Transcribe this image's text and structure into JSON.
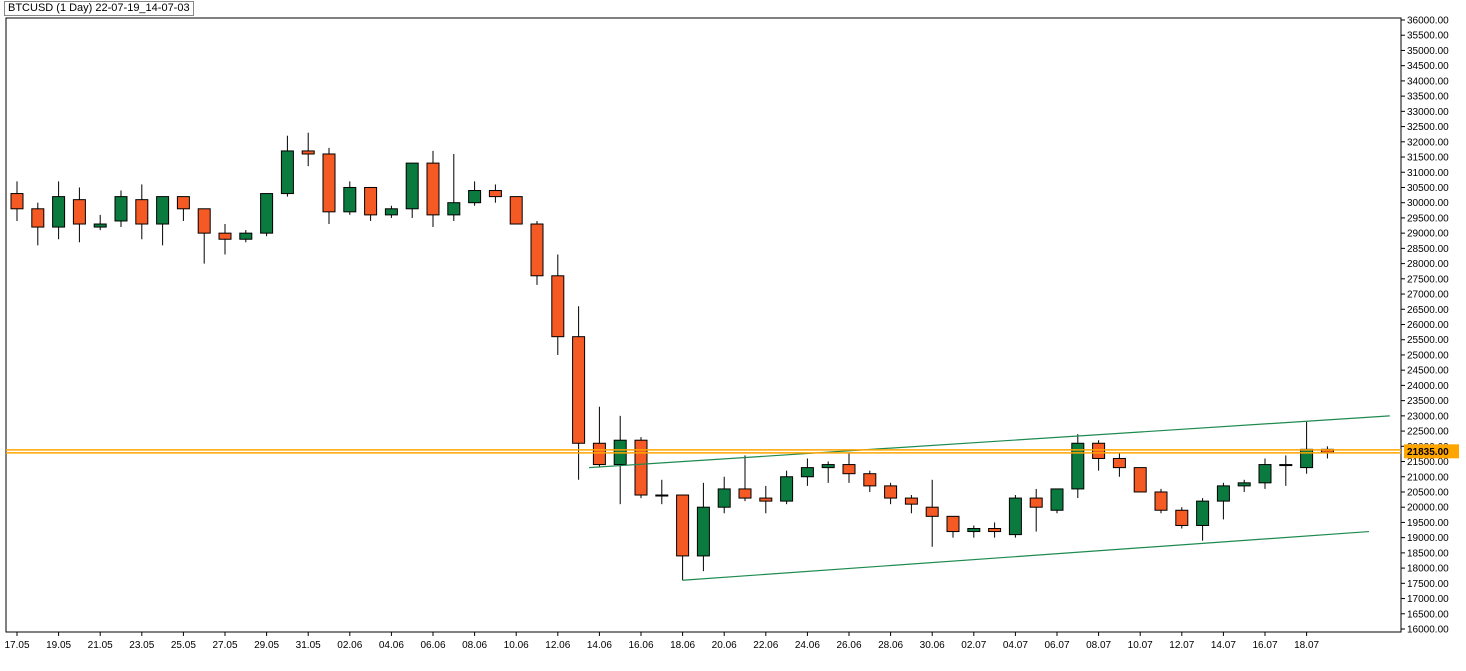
{
  "chart_data": {
    "type": "candlestick",
    "title": "BTCUSD (1 Day) 22-07-19_14-07-03",
    "ylim": [
      16000,
      36000
    ],
    "y_ticks": [
      16000,
      16500,
      17000,
      17500,
      18000,
      18500,
      19000,
      19500,
      20000,
      20500,
      21000,
      21500,
      22000,
      22500,
      23000,
      23500,
      24000,
      24500,
      25000,
      25500,
      26000,
      26500,
      27000,
      27500,
      28000,
      28500,
      29000,
      29500,
      30000,
      30500,
      31000,
      31500,
      32000,
      32500,
      33000,
      33500,
      34000,
      34500,
      35000,
      35500,
      36000
    ],
    "x_labels": [
      {
        "index": 0,
        "label": "17.05"
      },
      {
        "index": 2,
        "label": "19.05"
      },
      {
        "index": 4,
        "label": "21.05"
      },
      {
        "index": 6,
        "label": "23.05"
      },
      {
        "index": 8,
        "label": "25.05"
      },
      {
        "index": 10,
        "label": "27.05"
      },
      {
        "index": 12,
        "label": "29.05"
      },
      {
        "index": 14,
        "label": "31.05"
      },
      {
        "index": 16,
        "label": "02.06"
      },
      {
        "index": 18,
        "label": "04.06"
      },
      {
        "index": 20,
        "label": "06.06"
      },
      {
        "index": 22,
        "label": "08.06"
      },
      {
        "index": 24,
        "label": "10.06"
      },
      {
        "index": 26,
        "label": "12.06"
      },
      {
        "index": 28,
        "label": "14.06"
      },
      {
        "index": 30,
        "label": "16.06"
      },
      {
        "index": 32,
        "label": "18.06"
      },
      {
        "index": 34,
        "label": "20.06"
      },
      {
        "index": 36,
        "label": "22.06"
      },
      {
        "index": 38,
        "label": "24.06"
      },
      {
        "index": 40,
        "label": "26.06"
      },
      {
        "index": 42,
        "label": "28.06"
      },
      {
        "index": 44,
        "label": "30.06"
      },
      {
        "index": 46,
        "label": "02.07"
      },
      {
        "index": 48,
        "label": "04.07"
      },
      {
        "index": 50,
        "label": "06.07"
      },
      {
        "index": 52,
        "label": "08.07"
      },
      {
        "index": 54,
        "label": "10.07"
      },
      {
        "index": 56,
        "label": "12.07"
      },
      {
        "index": 58,
        "label": "14.07"
      },
      {
        "index": 60,
        "label": "16.07"
      },
      {
        "index": 62,
        "label": "18.07"
      }
    ],
    "candles": [
      {
        "o": 30300,
        "h": 30700,
        "l": 29400,
        "c": 29800
      },
      {
        "o": 29800,
        "h": 30000,
        "l": 28600,
        "c": 29200
      },
      {
        "o": 29200,
        "h": 30700,
        "l": 28800,
        "c": 30200
      },
      {
        "o": 30100,
        "h": 30500,
        "l": 28700,
        "c": 29300
      },
      {
        "o": 29200,
        "h": 29600,
        "l": 29100,
        "c": 29300
      },
      {
        "o": 29400,
        "h": 30400,
        "l": 29200,
        "c": 30200
      },
      {
        "o": 30100,
        "h": 30600,
        "l": 28800,
        "c": 29300
      },
      {
        "o": 29300,
        "h": 30200,
        "l": 28600,
        "c": 30200
      },
      {
        "o": 30200,
        "h": 30200,
        "l": 29400,
        "c": 29800
      },
      {
        "o": 29800,
        "h": 29800,
        "l": 28000,
        "c": 29000
      },
      {
        "o": 29000,
        "h": 29300,
        "l": 28300,
        "c": 28800
      },
      {
        "o": 28800,
        "h": 29100,
        "l": 28700,
        "c": 29000
      },
      {
        "o": 29000,
        "h": 30300,
        "l": 28900,
        "c": 30300
      },
      {
        "o": 30300,
        "h": 32200,
        "l": 30200,
        "c": 31700
      },
      {
        "o": 31700,
        "h": 32300,
        "l": 31200,
        "c": 31600
      },
      {
        "o": 31600,
        "h": 31800,
        "l": 29300,
        "c": 29700
      },
      {
        "o": 29700,
        "h": 30700,
        "l": 29600,
        "c": 30500
      },
      {
        "o": 30500,
        "h": 30500,
        "l": 29400,
        "c": 29600
      },
      {
        "o": 29600,
        "h": 29900,
        "l": 29500,
        "c": 29800
      },
      {
        "o": 29800,
        "h": 31300,
        "l": 29500,
        "c": 31300
      },
      {
        "o": 31300,
        "h": 31700,
        "l": 29200,
        "c": 29600
      },
      {
        "o": 29600,
        "h": 31600,
        "l": 29400,
        "c": 30000
      },
      {
        "o": 30000,
        "h": 30700,
        "l": 29900,
        "c": 30400
      },
      {
        "o": 30400,
        "h": 30600,
        "l": 30000,
        "c": 30200
      },
      {
        "o": 30200,
        "h": 30200,
        "l": 29300,
        "c": 29300
      },
      {
        "o": 29300,
        "h": 29400,
        "l": 27300,
        "c": 27600
      },
      {
        "o": 27600,
        "h": 28300,
        "l": 25000,
        "c": 25600
      },
      {
        "o": 25600,
        "h": 26600,
        "l": 20900,
        "c": 22100
      },
      {
        "o": 22100,
        "h": 23300,
        "l": 21300,
        "c": 21400
      },
      {
        "o": 21400,
        "h": 23000,
        "l": 20100,
        "c": 22200
      },
      {
        "o": 22200,
        "h": 22300,
        "l": 20300,
        "c": 20400
      },
      {
        "o": 20400,
        "h": 20900,
        "l": 20100,
        "c": 20400
      },
      {
        "o": 20400,
        "h": 20400,
        "l": 17600,
        "c": 18400
      },
      {
        "o": 18400,
        "h": 20800,
        "l": 17900,
        "c": 20000
      },
      {
        "o": 20000,
        "h": 21000,
        "l": 19800,
        "c": 20600
      },
      {
        "o": 20600,
        "h": 21700,
        "l": 20200,
        "c": 20300
      },
      {
        "o": 20300,
        "h": 20700,
        "l": 19800,
        "c": 20200
      },
      {
        "o": 20200,
        "h": 21200,
        "l": 20100,
        "c": 21000
      },
      {
        "o": 21000,
        "h": 21600,
        "l": 20700,
        "c": 21300
      },
      {
        "o": 21300,
        "h": 21500,
        "l": 20800,
        "c": 21400
      },
      {
        "o": 21400,
        "h": 21800,
        "l": 20800,
        "c": 21100
      },
      {
        "o": 21100,
        "h": 21200,
        "l": 20500,
        "c": 20700
      },
      {
        "o": 20700,
        "h": 20800,
        "l": 20100,
        "c": 20300
      },
      {
        "o": 20300,
        "h": 20400,
        "l": 19800,
        "c": 20100
      },
      {
        "o": 20000,
        "h": 20900,
        "l": 18700,
        "c": 19700
      },
      {
        "o": 19700,
        "h": 19700,
        "l": 19000,
        "c": 19200
      },
      {
        "o": 19200,
        "h": 19400,
        "l": 19000,
        "c": 19300
      },
      {
        "o": 19300,
        "h": 19500,
        "l": 19000,
        "c": 19200
      },
      {
        "o": 19100,
        "h": 20400,
        "l": 19000,
        "c": 20300
      },
      {
        "o": 20300,
        "h": 20600,
        "l": 19200,
        "c": 20000
      },
      {
        "o": 19900,
        "h": 20600,
        "l": 19800,
        "c": 20600
      },
      {
        "o": 20600,
        "h": 22400,
        "l": 20300,
        "c": 22100
      },
      {
        "o": 22100,
        "h": 22200,
        "l": 21200,
        "c": 21600
      },
      {
        "o": 21600,
        "h": 21800,
        "l": 21000,
        "c": 21300
      },
      {
        "o": 21300,
        "h": 21300,
        "l": 20500,
        "c": 20500
      },
      {
        "o": 20500,
        "h": 20600,
        "l": 19800,
        "c": 19900
      },
      {
        "o": 19900,
        "h": 20000,
        "l": 19300,
        "c": 19400
      },
      {
        "o": 19400,
        "h": 20300,
        "l": 18900,
        "c": 20200
      },
      {
        "o": 20200,
        "h": 20800,
        "l": 19600,
        "c": 20700
      },
      {
        "o": 20700,
        "h": 20900,
        "l": 20500,
        "c": 20800
      },
      {
        "o": 20800,
        "h": 21600,
        "l": 20600,
        "c": 21400
      },
      {
        "o": 21400,
        "h": 21700,
        "l": 20700,
        "c": 21400
      },
      {
        "o": 21300,
        "h": 22800,
        "l": 21100,
        "c": 21900
      },
      {
        "o": 21900,
        "h": 22000,
        "l": 21600,
        "c": 21800
      }
    ],
    "horizontal_line": {
      "value": 21835,
      "label": "21835.00",
      "color": "#ffa500"
    },
    "trend_lines": [
      {
        "from": {
          "index": 27.5,
          "value": 21300
        },
        "to": {
          "index": 66,
          "value": 23000
        },
        "color": "#1e8a50"
      },
      {
        "from": {
          "index": 32,
          "value": 17600
        },
        "to": {
          "index": 65,
          "value": 19200
        },
        "color": "#1e8a50"
      }
    ],
    "colors": {
      "up": "#0b7a3e",
      "down": "#f55a24",
      "outline": "#000000",
      "grid_border": "#000000"
    }
  }
}
